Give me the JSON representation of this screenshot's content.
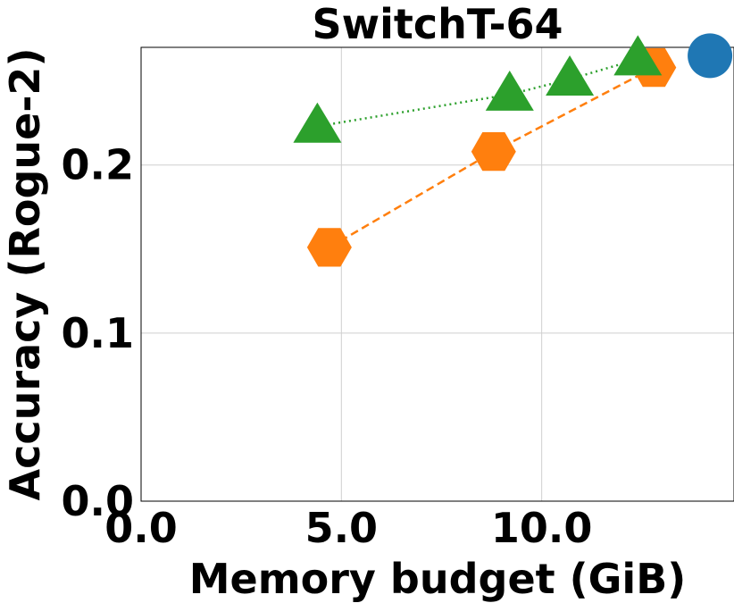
{
  "chart_data": {
    "type": "scatter",
    "title": "SwitchT-64",
    "xlabel": "Memory budget (GiB)",
    "ylabel": "Accuracy (Rogue-2)",
    "xlim": [
      0,
      14.8
    ],
    "ylim": [
      0,
      0.27
    ],
    "xticks": [
      {
        "value": 0,
        "label": "0.0"
      },
      {
        "value": 5,
        "label": "5.0"
      },
      {
        "value": 10,
        "label": "10.0"
      }
    ],
    "yticks": [
      {
        "value": 0,
        "label": "0.0"
      },
      {
        "value": 0.1,
        "label": "0.1"
      },
      {
        "value": 0.2,
        "label": "0.2"
      }
    ],
    "grid": true,
    "series": [
      {
        "marker": "hexagon",
        "color": "#ff7f0e",
        "line": "dashed",
        "points": [
          {
            "x": 4.7,
            "y": 0.151
          },
          {
            "x": 8.8,
            "y": 0.208
          },
          {
            "x": 12.8,
            "y": 0.258
          }
        ]
      },
      {
        "marker": "triangle",
        "color": "#2ca02c",
        "line": "dotted",
        "points": [
          {
            "x": 4.4,
            "y": 0.223
          },
          {
            "x": 9.2,
            "y": 0.242
          },
          {
            "x": 10.7,
            "y": 0.251
          },
          {
            "x": 12.4,
            "y": 0.263
          }
        ]
      },
      {
        "marker": "circle",
        "color": "#1f77b4",
        "line": "none",
        "points": [
          {
            "x": 14.2,
            "y": 0.265
          }
        ]
      }
    ]
  }
}
